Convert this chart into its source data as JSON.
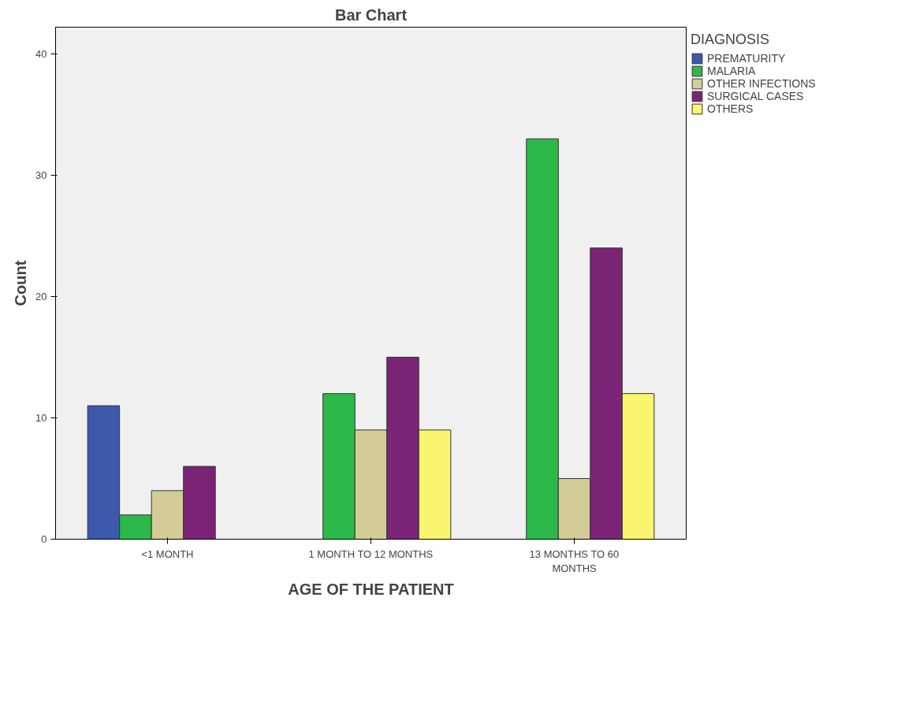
{
  "chart_data": {
    "type": "bar",
    "title": "Bar Chart",
    "xlabel": "AGE OF THE PATIENT",
    "ylabel": "Count",
    "legend_title": "DIAGNOSIS",
    "categories": [
      "<1 MONTH",
      "1 MONTH TO 12 MONTHS",
      "13 MONTHS TO 60 MONTHS"
    ],
    "series": [
      {
        "name": "PREMATURITY",
        "color": "#3e58ac",
        "values": [
          11,
          null,
          null
        ]
      },
      {
        "name": "MALARIA",
        "color": "#2db84a",
        "values": [
          2,
          12,
          33
        ]
      },
      {
        "name": "OTHER INFECTIONS",
        "color": "#d4cc98",
        "values": [
          4,
          9,
          5
        ]
      },
      {
        "name": "SURGICAL CASES",
        "color": "#7b2476",
        "values": [
          6,
          15,
          24
        ]
      },
      {
        "name": "OTHERS",
        "color": "#faf56e",
        "values": [
          null,
          9,
          12
        ]
      }
    ],
    "ylim": [
      0,
      42.2
    ],
    "yticks": [
      0,
      10,
      20,
      30,
      40
    ],
    "grid": false,
    "legend": "top right"
  }
}
